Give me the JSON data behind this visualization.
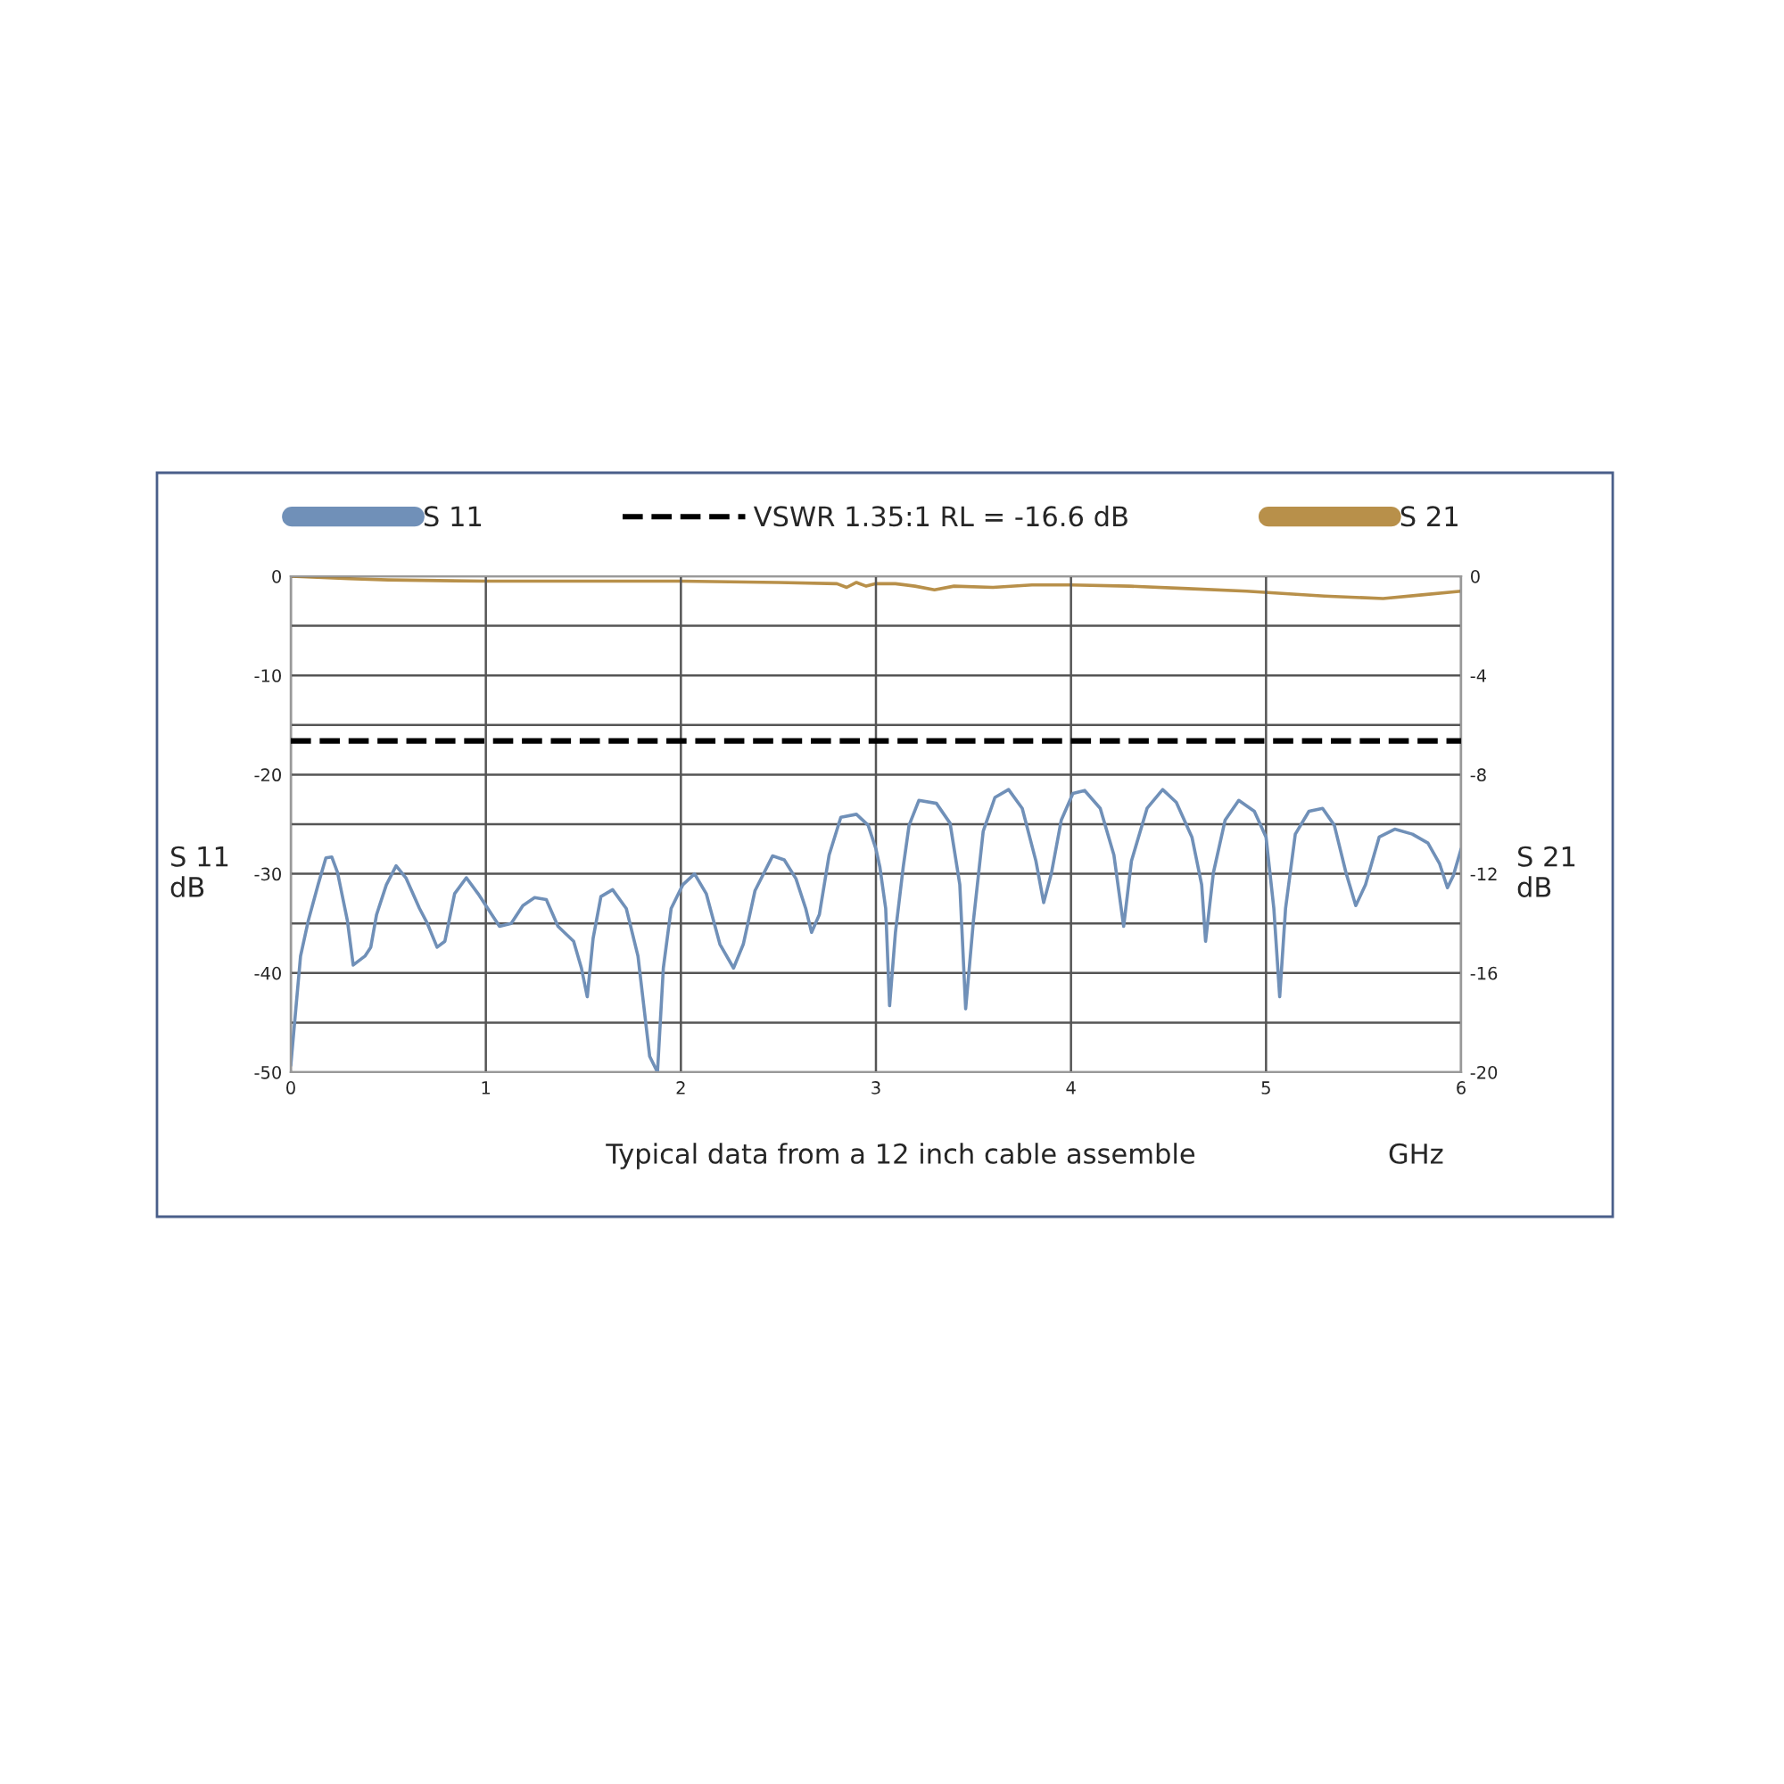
{
  "chart_data": {
    "type": "line",
    "xlabel": "GHz",
    "ylabel": "S 11\ndB",
    "y2label": "S 21\ndB",
    "annotations": [
      "Typical data from a 12 inch cable assemble"
    ],
    "xlim": [
      0,
      6
    ],
    "xticks": [
      0,
      1,
      2,
      3,
      4,
      5,
      6
    ],
    "ylim": [
      -50,
      0
    ],
    "yticks": [
      -50,
      {
        "value": -45,
        "label": null
      },
      -40,
      {
        "value": -35,
        "label": null
      },
      -30,
      {
        "value": -25,
        "label": null
      },
      -20,
      {
        "value": -15,
        "label": null
      },
      -10,
      {
        "value": -5,
        "label": null
      },
      0
    ],
    "y2lim": [
      -20,
      0
    ],
    "y2ticks": [
      -20,
      -16,
      -12,
      -8,
      -4,
      0
    ],
    "grid": true,
    "legend": "top",
    "line_style": "solid",
    "marker": "none",
    "ref_lines": [
      {
        "axis": "y",
        "value": -16.6,
        "label": "VSWR 1.35:1 RL = -16.6 dB",
        "color": "#000000",
        "line_style": "dashed"
      }
    ],
    "series": [
      {
        "name": "S 11",
        "color": "#7090b8",
        "x": [
          0.0,
          0.05,
          0.09,
          0.14,
          0.18,
          0.21,
          0.24,
          0.29,
          0.32,
          0.38,
          0.41,
          0.44,
          0.49,
          0.54,
          0.59,
          0.66,
          0.7,
          0.75,
          0.79,
          0.84,
          0.9,
          0.96,
          1.01,
          1.07,
          1.13,
          1.19,
          1.25,
          1.31,
          1.37,
          1.45,
          1.49,
          1.52,
          1.55,
          1.59,
          1.65,
          1.72,
          1.78,
          1.84,
          1.88,
          1.91,
          1.95,
          2.01,
          2.07,
          2.13,
          2.2,
          2.27,
          2.32,
          2.38,
          2.47,
          2.53,
          2.59,
          2.64,
          2.67,
          2.71,
          2.76,
          2.82,
          2.9,
          2.96,
          3.0,
          3.02,
          3.05,
          3.07,
          3.1,
          3.14,
          3.17,
          3.22,
          3.31,
          3.38,
          3.43,
          3.46,
          3.5,
          3.55,
          3.61,
          3.68,
          3.75,
          3.82,
          3.86,
          3.9,
          3.95,
          4.01,
          4.07,
          4.15,
          4.22,
          4.27,
          4.31,
          4.39,
          4.47,
          4.54,
          4.62,
          4.67,
          4.69,
          4.73,
          4.79,
          4.86,
          4.94,
          5.0,
          5.04,
          5.07,
          5.1,
          5.15,
          5.22,
          5.29,
          5.35,
          5.41,
          5.46,
          5.51,
          5.58,
          5.66,
          5.75,
          5.83,
          5.89,
          5.93,
          5.96,
          6.0
        ],
        "values": [
          -49.3,
          -38.3,
          -34.7,
          -31.1,
          -28.4,
          -28.3,
          -29.9,
          -34.7,
          -39.2,
          -38.3,
          -37.4,
          -34.1,
          -31.1,
          -29.2,
          -30.4,
          -33.5,
          -35.0,
          -37.4,
          -36.8,
          -32.0,
          -30.4,
          -32.0,
          -33.5,
          -35.3,
          -35.0,
          -33.2,
          -32.4,
          -32.6,
          -35.3,
          -36.8,
          -39.5,
          -42.4,
          -36.5,
          -32.3,
          -31.6,
          -33.5,
          -38.3,
          -48.4,
          -50,
          -39.5,
          -33.5,
          -31.1,
          -30.0,
          -32.0,
          -37.1,
          -39.5,
          -37.1,
          -31.7,
          -28.2,
          -28.6,
          -30.5,
          -33.5,
          -35.9,
          -34.1,
          -28.1,
          -24.3,
          -24.0,
          -25.1,
          -27.5,
          -29.3,
          -33.5,
          -43.3,
          -35.9,
          -29.3,
          -25.1,
          -22.6,
          -22.9,
          -24.9,
          -31.1,
          -43.6,
          -34.7,
          -25.7,
          -22.3,
          -21.5,
          -23.4,
          -28.7,
          -32.9,
          -29.9,
          -24.6,
          -21.9,
          -21.6,
          -23.4,
          -28.1,
          -35.3,
          -28.7,
          -23.4,
          -21.5,
          -22.8,
          -26.3,
          -31.1,
          -36.8,
          -29.9,
          -24.6,
          -22.6,
          -23.7,
          -26.3,
          -33.5,
          -42.4,
          -33.5,
          -26.0,
          -23.7,
          -23.4,
          -25.1,
          -29.9,
          -33.2,
          -31.1,
          -26.3,
          -25.5,
          -26.0,
          -26.9,
          -29.0,
          -31.4,
          -30.2,
          -27.5
        ]
      },
      {
        "name": "S 21",
        "color": "#b8904a",
        "axis": "y2",
        "x": [
          0,
          0.3,
          0.5,
          1,
          1.5,
          2,
          2.5,
          2.8,
          2.85,
          2.9,
          2.95,
          3.0,
          3.1,
          3.2,
          3.3,
          3.4,
          3.6,
          3.8,
          4.0,
          4.3,
          4.6,
          4.9,
          5.1,
          5.3,
          5.6,
          5.8,
          6.0
        ],
        "values": [
          0,
          -0.1,
          -0.15,
          -0.2,
          -0.2,
          -0.2,
          -0.25,
          -0.3,
          -0.45,
          -0.25,
          -0.4,
          -0.3,
          -0.3,
          -0.4,
          -0.55,
          -0.4,
          -0.45,
          -0.35,
          -0.35,
          -0.4,
          -0.5,
          -0.6,
          -0.7,
          -0.8,
          -0.9,
          -0.75,
          -0.6
        ]
      }
    ]
  }
}
